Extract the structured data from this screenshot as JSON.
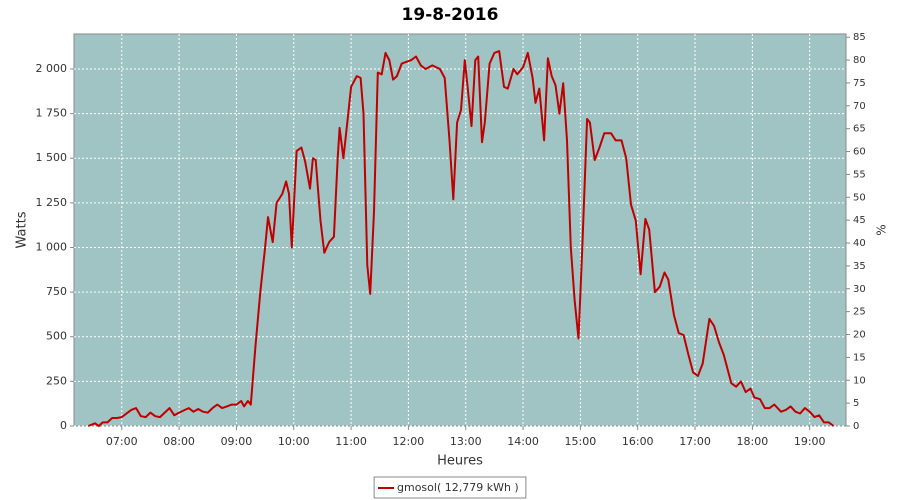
{
  "chart_data": {
    "type": "line",
    "title": "19-8-2016",
    "xlabel": "Heures",
    "ylabel": "Watts",
    "y2label": "%",
    "xlim": [
      "06:10",
      "19:38"
    ],
    "xticks": [
      "07:00",
      "08:00",
      "09:00",
      "10:00",
      "11:00",
      "12:00",
      "13:00",
      "14:00",
      "15:00",
      "16:00",
      "17:00",
      "18:00",
      "19:00"
    ],
    "ylim": [
      0,
      2196
    ],
    "yticks": [
      0,
      250,
      500,
      750,
      {
        "value": 1000,
        "label": "1 000"
      },
      {
        "value": 1250,
        "label": "1 250"
      },
      {
        "value": 1500,
        "label": "1 500"
      },
      {
        "value": 1750,
        "label": "1 750"
      },
      {
        "value": 2000,
        "label": "2 000"
      }
    ],
    "y2lim": [
      0,
      85.7
    ],
    "y2ticks": [
      0,
      5,
      10,
      15,
      20,
      25,
      30,
      35,
      40,
      45,
      50,
      55,
      60,
      65,
      70,
      75,
      80,
      85
    ],
    "grid": true,
    "legend": "bottom",
    "background": "#a0c4c4",
    "x": [
      "06:25",
      "06:32",
      "06:36",
      "06:40",
      "06:45",
      "06:50",
      "06:55",
      "07:00",
      "07:10",
      "07:15",
      "07:20",
      "07:25",
      "07:30",
      "07:35",
      "07:40",
      "07:50",
      "07:55",
      "08:00",
      "08:10",
      "08:15",
      "08:20",
      "08:25",
      "08:30",
      "08:35",
      "08:40",
      "08:45",
      "08:50",
      "08:55",
      "09:00",
      "09:05",
      "09:08",
      "09:12",
      "09:15",
      "09:20",
      "09:25",
      "09:30",
      "09:33",
      "09:38",
      "09:42",
      "09:48",
      "09:52",
      "09:55",
      "09:58",
      "10:03",
      "10:08",
      "10:12",
      "10:17",
      "10:20",
      "10:23",
      "10:28",
      "10:32",
      "10:37",
      "10:42",
      "10:46",
      "10:48",
      "10:52",
      "10:56",
      "11:00",
      "11:06",
      "11:10",
      "11:13",
      "11:17",
      "11:20",
      "11:24",
      "11:28",
      "11:32",
      "11:36",
      "11:40",
      "11:44",
      "11:48",
      "11:53",
      "11:58",
      "12:03",
      "12:08",
      "12:13",
      "12:18",
      "12:25",
      "12:33",
      "12:38",
      "12:43",
      "12:47",
      "12:51",
      "12:55",
      "12:59",
      "13:02",
      "13:06",
      "13:10",
      "13:13",
      "13:17",
      "13:20",
      "13:25",
      "13:30",
      "13:35",
      "13:40",
      "13:44",
      "13:50",
      "13:54",
      "14:00",
      "14:05",
      "14:10",
      "14:13",
      "14:17",
      "14:22",
      "14:26",
      "14:30",
      "14:34",
      "14:38",
      "14:42",
      "14:46",
      "14:50",
      "14:54",
      "14:58",
      "15:02",
      "15:07",
      "15:10",
      "15:15",
      "15:20",
      "15:25",
      "15:32",
      "15:37",
      "15:43",
      "15:48",
      "15:53",
      "15:58",
      "16:03",
      "16:08",
      "16:12",
      "16:18",
      "16:23",
      "16:28",
      "16:32",
      "16:38",
      "16:43",
      "16:48",
      "16:53",
      "16:58",
      "17:03",
      "17:08",
      "17:15",
      "17:20",
      "17:25",
      "17:30",
      "17:38",
      "17:43",
      "17:48",
      "17:53",
      "17:58",
      "18:02",
      "18:08",
      "18:13",
      "18:18",
      "18:23",
      "18:30",
      "18:35",
      "18:40",
      "18:45",
      "18:50",
      "18:55",
      "19:00",
      "19:05",
      "19:10",
      "19:15",
      "19:20",
      "19:25"
    ],
    "series": [
      {
        "name": "gmosol( 12,779 kWh )",
        "color": "#c00000",
        "values": [
          0,
          15,
          0,
          20,
          20,
          45,
          45,
          50,
          90,
          100,
          55,
          50,
          75,
          55,
          50,
          100,
          60,
          75,
          100,
          80,
          95,
          80,
          75,
          100,
          120,
          100,
          110,
          120,
          120,
          140,
          110,
          140,
          120,
          450,
          750,
          1000,
          1170,
          1030,
          1250,
          1300,
          1370,
          1300,
          1000,
          1540,
          1560,
          1480,
          1330,
          1500,
          1490,
          1150,
          970,
          1030,
          1060,
          1500,
          1670,
          1500,
          1700,
          1900,
          1960,
          1950,
          1750,
          900,
          740,
          1200,
          1980,
          1970,
          2090,
          2050,
          1940,
          1960,
          2030,
          2040,
          2050,
          2070,
          2020,
          2000,
          2020,
          2000,
          1950,
          1600,
          1270,
          1700,
          1770,
          2050,
          1900,
          1680,
          2050,
          2070,
          1590,
          1700,
          2030,
          2090,
          2100,
          1900,
          1890,
          2000,
          1970,
          2010,
          2090,
          1950,
          1810,
          1890,
          1600,
          2060,
          1960,
          1910,
          1750,
          1920,
          1600,
          1000,
          700,
          490,
          1000,
          1720,
          1700,
          1490,
          1560,
          1640,
          1640,
          1600,
          1600,
          1500,
          1240,
          1150,
          850,
          1160,
          1100,
          750,
          780,
          860,
          820,
          620,
          520,
          510,
          400,
          300,
          280,
          350,
          600,
          560,
          470,
          400,
          240,
          220,
          250,
          190,
          210,
          160,
          150,
          100,
          100,
          120,
          80,
          90,
          110,
          80,
          70,
          100,
          80,
          50,
          60,
          20,
          20,
          0
        ]
      }
    ]
  }
}
